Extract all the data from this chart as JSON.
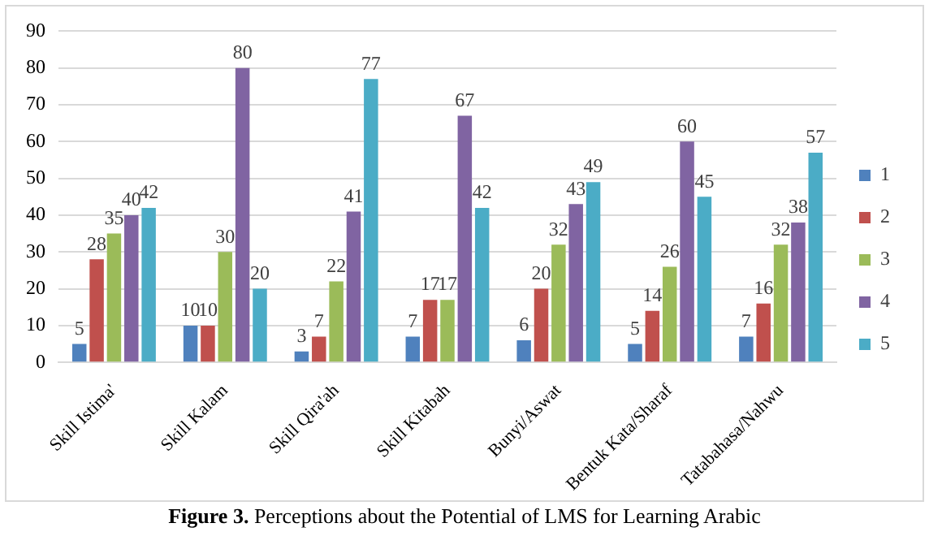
{
  "chart_data": {
    "type": "bar",
    "categories": [
      "Skill Istima'",
      "Skill Kalam",
      "Skill Qira'ah",
      "Skill Kitabah",
      "Bunyi/Aswat",
      "Bentuk Kata/Sharaf",
      "Tatabahasa/Nahwu"
    ],
    "series": [
      {
        "name": "1",
        "color": "#4f81bd",
        "values": [
          5,
          10,
          3,
          7,
          6,
          5,
          7
        ]
      },
      {
        "name": "2",
        "color": "#c0504d",
        "values": [
          28,
          10,
          7,
          17,
          20,
          14,
          16
        ]
      },
      {
        "name": "3",
        "color": "#9bbb59",
        "values": [
          35,
          30,
          22,
          17,
          32,
          26,
          32
        ]
      },
      {
        "name": "4",
        "color": "#8064a2",
        "values": [
          40,
          80,
          41,
          67,
          43,
          60,
          38
        ]
      },
      {
        "name": "5",
        "color": "#4bacc6",
        "values": [
          42,
          20,
          77,
          42,
          49,
          45,
          57
        ]
      }
    ],
    "ylim": [
      0,
      90
    ],
    "yticks": [
      0,
      10,
      20,
      30,
      40,
      50,
      60,
      70,
      80,
      90
    ],
    "grid": "y",
    "legend": "right",
    "data_labels": true,
    "annotations": [
      "Figure 3. Perceptions about the Potential of LMS for Learning Arabic"
    ]
  }
}
